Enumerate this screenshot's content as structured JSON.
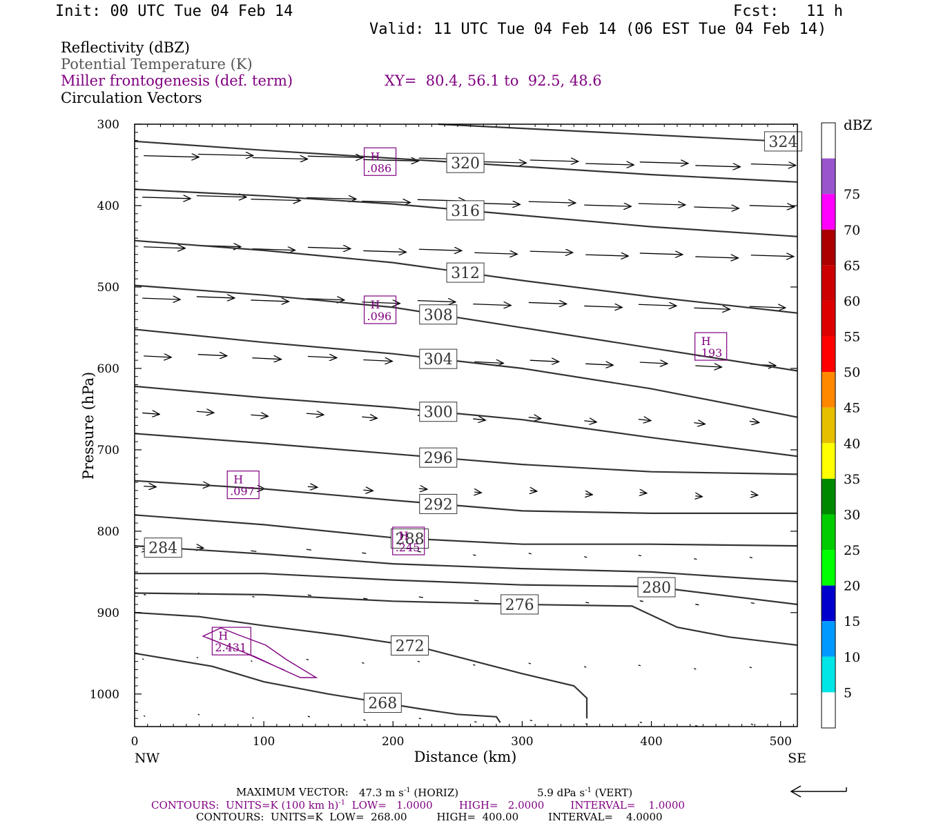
{
  "header": {
    "init": "Init: 00 UTC Tue 04 Feb 14",
    "fcst_label": "Fcst:",
    "fcst_value": "11 h",
    "valid": "Valid: 11 UTC Tue 04 Feb 14 (06 EST Tue 04 Feb 14)"
  },
  "legend": {
    "line1": "Reflectivity (dBZ)",
    "line2": "Potential Temperature (K)",
    "line3": "Miller frontogenesis (def. term)",
    "xy": "XY=  80.4, 56.1 to  92.5, 48.6",
    "line4": "Circulation Vectors"
  },
  "colors": {
    "purple": "#800080",
    "contour": "#333333"
  },
  "chart_data": {
    "type": "cross-section",
    "xlabel": "Distance (km)",
    "ylabel": "Pressure (hPa)",
    "xlim": [
      0,
      513
    ],
    "ylim": [
      1040,
      300
    ],
    "x_ticks": [
      "0",
      "100",
      "200",
      "300",
      "400",
      "500"
    ],
    "x_tick_values": [
      0,
      100,
      200,
      300,
      400,
      500
    ],
    "y_ticks": [
      "300",
      "400",
      "500",
      "600",
      "700",
      "800",
      "900",
      "1000"
    ],
    "y_tick_values": [
      300,
      400,
      500,
      600,
      700,
      800,
      900,
      1000
    ],
    "left_end": "NW",
    "right_end": "SE",
    "theta_units": "K",
    "theta_contours": [
      {
        "label": "324",
        "label_x": 502,
        "points": [
          [
            235,
            300
          ],
          [
            513,
            322
          ]
        ]
      },
      {
        "label": "320",
        "label_x": 256,
        "points": [
          [
            0,
            321
          ],
          [
            100,
            332
          ],
          [
            200,
            342
          ],
          [
            300,
            352
          ],
          [
            400,
            362
          ],
          [
            513,
            371
          ]
        ]
      },
      {
        "label": "316",
        "label_x": 256,
        "points": [
          [
            0,
            380
          ],
          [
            100,
            388
          ],
          [
            200,
            398
          ],
          [
            300,
            412
          ],
          [
            400,
            426
          ],
          [
            513,
            438
          ]
        ]
      },
      {
        "label": "312",
        "label_x": 256,
        "points": [
          [
            0,
            443
          ],
          [
            100,
            455
          ],
          [
            200,
            470
          ],
          [
            300,
            492
          ],
          [
            400,
            512
          ],
          [
            513,
            532
          ]
        ]
      },
      {
        "label": "308",
        "label_x": 235,
        "points": [
          [
            0,
            498
          ],
          [
            100,
            510
          ],
          [
            200,
            525
          ],
          [
            300,
            550
          ],
          [
            400,
            575
          ],
          [
            513,
            603
          ]
        ]
      },
      {
        "label": "304",
        "label_x": 235,
        "points": [
          [
            0,
            552
          ],
          [
            100,
            568
          ],
          [
            200,
            582
          ],
          [
            300,
            600
          ],
          [
            400,
            625
          ],
          [
            513,
            660
          ]
        ]
      },
      {
        "label": "300",
        "label_x": 235,
        "points": [
          [
            0,
            622
          ],
          [
            100,
            636
          ],
          [
            200,
            648
          ],
          [
            300,
            663
          ],
          [
            400,
            685
          ],
          [
            513,
            708
          ]
        ]
      },
      {
        "label": "296",
        "label_x": 235,
        "points": [
          [
            0,
            680
          ],
          [
            100,
            692
          ],
          [
            200,
            705
          ],
          [
            300,
            718
          ],
          [
            400,
            727
          ],
          [
            513,
            730
          ]
        ]
      },
      {
        "label": "292",
        "label_x": 235,
        "points": [
          [
            0,
            738
          ],
          [
            100,
            748
          ],
          [
            200,
            762
          ],
          [
            300,
            775
          ],
          [
            400,
            778
          ],
          [
            513,
            778
          ]
        ]
      },
      {
        "label": "288",
        "label_x": 213,
        "points": [
          [
            0,
            780
          ],
          [
            100,
            792
          ],
          [
            200,
            808
          ],
          [
            300,
            816
          ],
          [
            400,
            816
          ],
          [
            513,
            818
          ]
        ]
      },
      {
        "label": "284",
        "label_x": 22,
        "points": [
          [
            0,
            818
          ],
          [
            100,
            828
          ],
          [
            200,
            840
          ],
          [
            300,
            846
          ],
          [
            400,
            850
          ],
          [
            513,
            862
          ]
        ]
      },
      {
        "label": "280",
        "label_x": 404,
        "points": [
          [
            0,
            852
          ],
          [
            100,
            852
          ],
          [
            200,
            860
          ],
          [
            300,
            866
          ],
          [
            400,
            868
          ],
          [
            513,
            890
          ]
        ]
      },
      {
        "label": "276",
        "label_x": 298,
        "points": [
          [
            0,
            876
          ],
          [
            100,
            878
          ],
          [
            200,
            886
          ],
          [
            300,
            890
          ],
          [
            385,
            892
          ],
          [
            420,
            918
          ],
          [
            460,
            930
          ],
          [
            513,
            940
          ]
        ]
      },
      {
        "label": "272",
        "label_x": 213,
        "points": [
          [
            0,
            900
          ],
          [
            50,
            905
          ],
          [
            100,
            916
          ],
          [
            160,
            928
          ],
          [
            220,
            942
          ],
          [
            300,
            975
          ],
          [
            340,
            990
          ],
          [
            350,
            1005
          ],
          [
            350,
            1030
          ]
        ]
      },
      {
        "label": "268",
        "label_x": 192,
        "points": [
          [
            0,
            950
          ],
          [
            60,
            966
          ],
          [
            100,
            985
          ],
          [
            150,
            1000
          ],
          [
            220,
            1018
          ],
          [
            250,
            1025
          ],
          [
            280,
            1028
          ],
          [
            283,
            1035
          ]
        ]
      }
    ],
    "frontogenesis_maxima": [
      {
        "label": "H",
        "value": ".086",
        "x": 190,
        "p": 346
      },
      {
        "label": "H",
        "value": ".096",
        "x": 190,
        "p": 528
      },
      {
        "label": "H",
        "value": ".193",
        "x": 446,
        "p": 573
      },
      {
        "label": "H",
        "value": ".097",
        "x": 84,
        "p": 743
      },
      {
        "label": "H",
        "value": ".245",
        "x": 212,
        "p": 812
      },
      {
        "label": "H",
        "value": "2.431",
        "x": 75,
        "p": 935
      }
    ],
    "reflectivity_scale": {
      "label": "dBZ",
      "levels": [
        "5",
        "10",
        "15",
        "20",
        "25",
        "30",
        "35",
        "40",
        "45",
        "50",
        "55",
        "60",
        "65",
        "70",
        "75"
      ],
      "colors": [
        "#ffffff",
        "#00e5e5",
        "#0099ff",
        "#0000cc",
        "#00ff00",
        "#00cc00",
        "#008800",
        "#ffff00",
        "#e5bf00",
        "#ff8800",
        "#ff0000",
        "#dd0000",
        "#cc0000",
        "#aa0000",
        "#ff00ff",
        "#9955cc",
        "#ffffff"
      ]
    }
  },
  "footer": {
    "max_vector_label": "MAXIMUM VECTOR:",
    "max_vector_horiz": "47.3 m s",
    "max_vector_horiz_unit": "(HORIZ)",
    "max_vector_vert": "5.9 dPa s",
    "max_vector_vert_unit": "(VERT)",
    "exp": "-1",
    "contours1_a": "CONTOURS:  UNITS=K (100 km h)",
    "contours1_b": "LOW=   1.0000        HIGH=   2.0000        INTERVAL=    1.0000",
    "contours2": "CONTOURS:  UNITS=K  LOW=  268.00         HIGH=  400.00         INTERVAL=    4.0000"
  }
}
